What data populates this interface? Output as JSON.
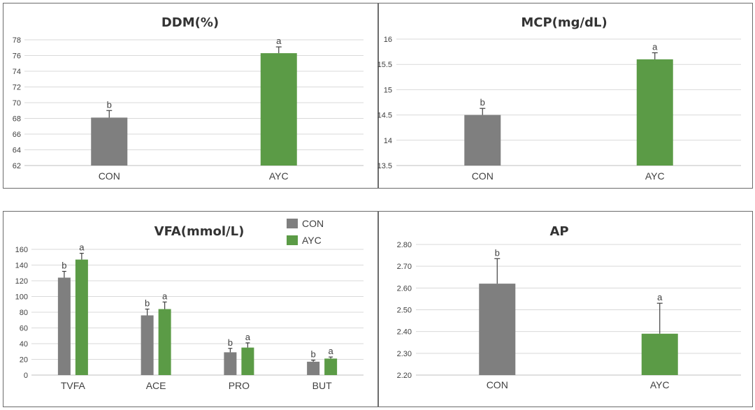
{
  "colors": {
    "CON": "#7f7f7f",
    "AYC": "#5b9b46"
  },
  "chart_data": [
    {
      "id": "ddm",
      "type": "bar",
      "title": "DDM(%)",
      "categories": [
        "CON",
        "AYC"
      ],
      "values": [
        68.1,
        76.3
      ],
      "errors": [
        0.9,
        0.8
      ],
      "letters": [
        "b",
        "a"
      ],
      "ylim": [
        62,
        78
      ],
      "yticks": [
        62,
        64,
        66,
        68,
        70,
        72,
        74,
        76,
        78
      ],
      "yticklabels": [
        "62",
        "64",
        "66",
        "68",
        "70",
        "72",
        "74",
        "76",
        "78"
      ],
      "grid": true
    },
    {
      "id": "mcp",
      "type": "bar",
      "title": "MCP(mg/dL)",
      "categories": [
        "CON",
        "AYC"
      ],
      "values": [
        14.5,
        15.6
      ],
      "errors": [
        0.13,
        0.13
      ],
      "letters": [
        "b",
        "a"
      ],
      "ylim": [
        13.5,
        16
      ],
      "yticks": [
        13.5,
        14,
        14.5,
        15,
        15.5,
        16
      ],
      "yticklabels": [
        "13.5",
        "14",
        "14.5",
        "15",
        "15.5",
        "16"
      ],
      "grid": true
    },
    {
      "id": "vfa",
      "type": "bar",
      "title": "VFA(mmol/L)",
      "categories": [
        "TVFA",
        "ACE",
        "PRO",
        "BUT"
      ],
      "series": [
        {
          "name": "CON",
          "values": [
            124,
            76,
            29,
            17
          ],
          "errors": [
            8,
            8,
            5,
            2
          ],
          "letters": [
            "b",
            "b",
            "b",
            "b"
          ]
        },
        {
          "name": "AYC",
          "values": [
            147,
            84,
            35,
            21
          ],
          "errors": [
            8,
            9,
            6,
            2
          ],
          "letters": [
            "a",
            "a",
            "a",
            "a"
          ]
        }
      ],
      "ylim": [
        0,
        160
      ],
      "yticks": [
        0,
        20,
        40,
        60,
        80,
        100,
        120,
        140,
        160
      ],
      "yticklabels": [
        "0",
        "20",
        "40",
        "60",
        "80",
        "100",
        "120",
        "140",
        "160"
      ],
      "legend": "top",
      "grid": true
    },
    {
      "id": "ap",
      "type": "bar",
      "title": "AP",
      "categories": [
        "CON",
        "AYC"
      ],
      "values": [
        2.62,
        2.39
      ],
      "errors": [
        0.115,
        0.14
      ],
      "letters": [
        "b",
        "a"
      ],
      "ylim": [
        2.2,
        2.8
      ],
      "yticks": [
        2.2,
        2.3,
        2.4,
        2.5,
        2.6,
        2.7,
        2.8
      ],
      "yticklabels": [
        "2.20",
        "2.30",
        "2.40",
        "2.50",
        "2.60",
        "2.70",
        "2.80"
      ],
      "grid": true
    }
  ]
}
